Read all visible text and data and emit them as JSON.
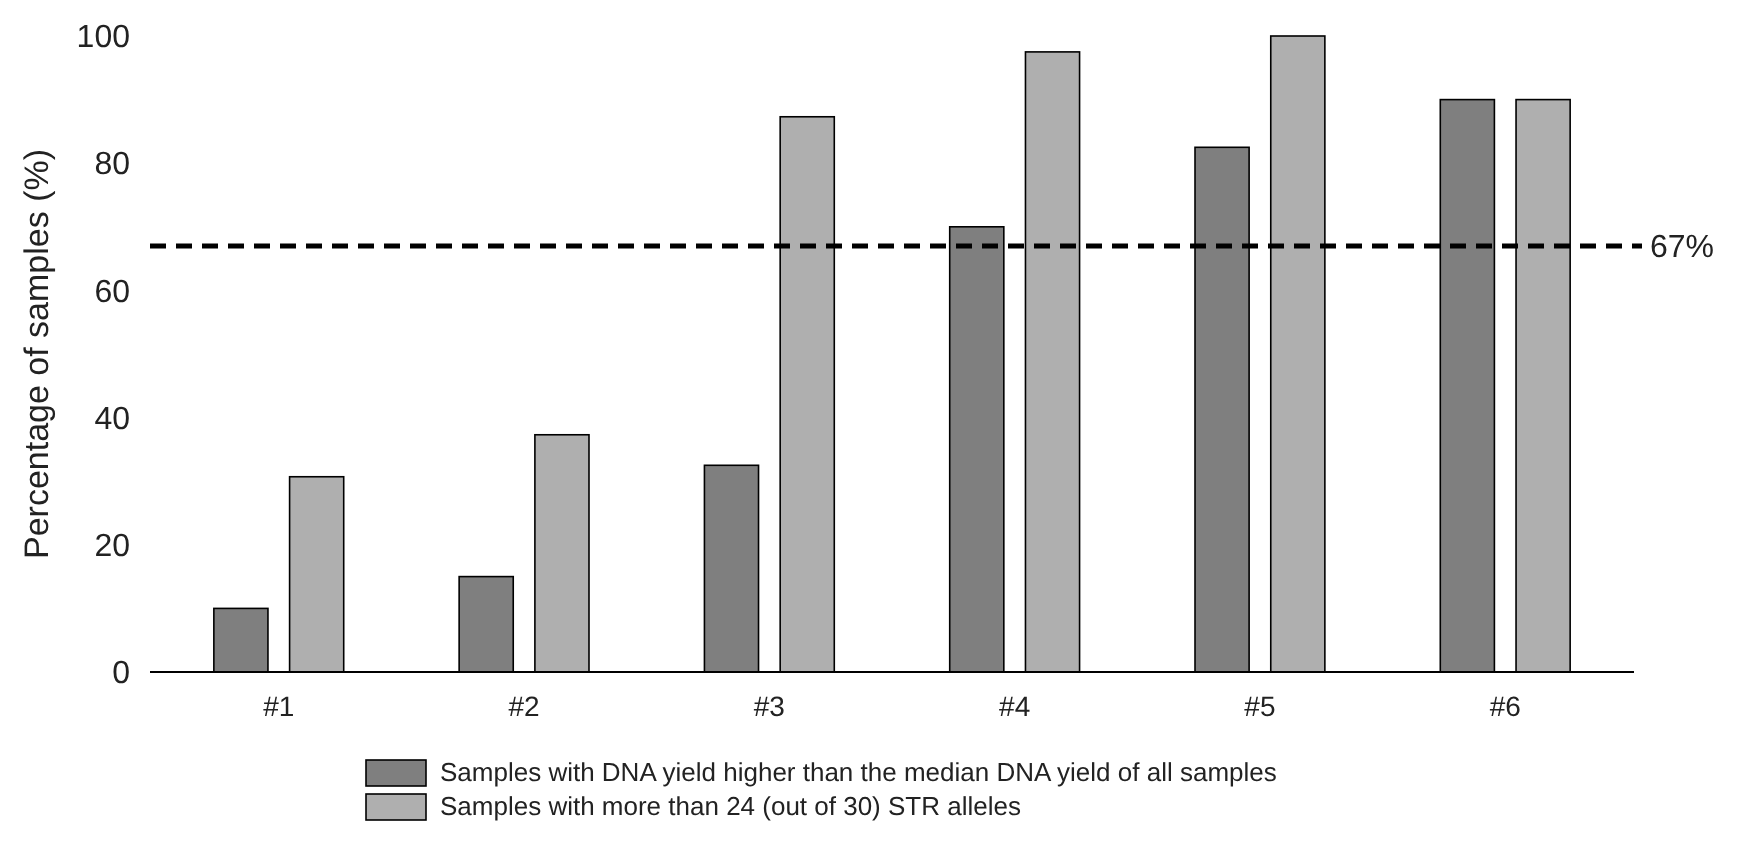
{
  "chart_data": {
    "type": "bar",
    "ylabel": "Percentage of samples (%)",
    "categories": [
      "#1",
      "#2",
      "#3",
      "#4",
      "#5",
      "#6"
    ],
    "series": [
      {
        "name": "Samples with DNA yield higher than the median DNA yield of all samples",
        "color": "#7f7f7f",
        "values": [
          10,
          15,
          32.5,
          70,
          82.5,
          90
        ]
      },
      {
        "name": "Samples with more than 24 (out of 30) STR alleles",
        "color": "#afafaf",
        "values": [
          30.7,
          37.3,
          87.3,
          97.5,
          100,
          90
        ]
      }
    ],
    "ylim": [
      0,
      100
    ],
    "yticks": [
      0,
      20,
      40,
      60,
      80,
      100
    ],
    "grid": false,
    "legend": "bottom",
    "ref_lines": [
      {
        "axis": "y",
        "value": 67,
        "label": "67%",
        "line_style": "dashed",
        "color": "#000000"
      }
    ]
  }
}
